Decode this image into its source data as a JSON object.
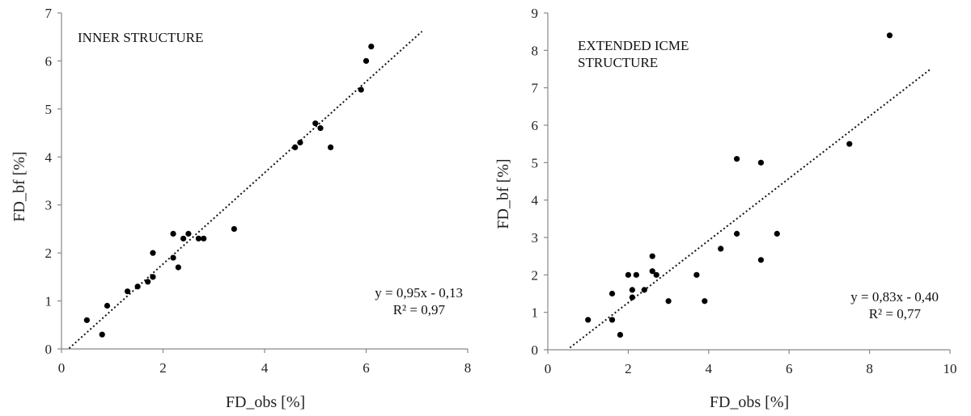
{
  "chart_data": [
    {
      "type": "scatter",
      "label": "INNER STRUCTURE",
      "xlabel": "FD_obs [%]",
      "ylabel": "FD_bf [%]",
      "xlim": [
        0,
        8
      ],
      "ylim": [
        0,
        7
      ],
      "xticks": [
        0,
        2,
        4,
        6,
        8
      ],
      "yticks": [
        0,
        1,
        2,
        3,
        4,
        5,
        6,
        7
      ],
      "grid": false,
      "equation": "y = 0,95x - 0,13",
      "r2": "R² = 0,97",
      "trendline": {
        "slope": 0.95,
        "intercept": -0.13,
        "x_from": 0.15,
        "x_to": 7.1
      },
      "points": [
        [
          0.5,
          0.6
        ],
        [
          0.8,
          0.3
        ],
        [
          0.9,
          0.9
        ],
        [
          1.3,
          1.2
        ],
        [
          1.5,
          1.3
        ],
        [
          1.7,
          1.4
        ],
        [
          1.8,
          1.5
        ],
        [
          1.8,
          2.0
        ],
        [
          2.2,
          1.9
        ],
        [
          2.2,
          2.4
        ],
        [
          2.3,
          1.7
        ],
        [
          2.4,
          2.3
        ],
        [
          2.5,
          2.4
        ],
        [
          2.7,
          2.3
        ],
        [
          2.8,
          2.3
        ],
        [
          3.4,
          2.5
        ],
        [
          4.6,
          4.2
        ],
        [
          4.7,
          4.3
        ],
        [
          5.0,
          4.7
        ],
        [
          5.1,
          4.6
        ],
        [
          5.3,
          4.2
        ],
        [
          5.9,
          5.4
        ],
        [
          6.0,
          6.0
        ],
        [
          6.1,
          6.3
        ]
      ]
    },
    {
      "type": "scatter",
      "label_lines": [
        "EXTENDED ICME",
        "STRUCTURE"
      ],
      "xlabel": "FD_obs [%]",
      "ylabel": "FD_bf [%]",
      "xlim": [
        0,
        10
      ],
      "ylim": [
        0,
        9
      ],
      "xticks": [
        0,
        2,
        4,
        6,
        8,
        10
      ],
      "yticks": [
        0,
        1,
        2,
        3,
        4,
        5,
        6,
        7,
        8,
        9
      ],
      "grid": false,
      "equation": "y = 0,83x - 0,40",
      "r2": "R² = 0,77",
      "trendline": {
        "slope": 0.83,
        "intercept": -0.4,
        "x_from": 0.55,
        "x_to": 9.5
      },
      "points": [
        [
          1.0,
          0.8
        ],
        [
          1.6,
          0.8
        ],
        [
          1.6,
          1.5
        ],
        [
          1.8,
          0.4
        ],
        [
          2.0,
          2.0
        ],
        [
          2.1,
          1.4
        ],
        [
          2.1,
          1.6
        ],
        [
          2.2,
          2.0
        ],
        [
          2.4,
          1.6
        ],
        [
          2.6,
          2.1
        ],
        [
          2.6,
          2.5
        ],
        [
          2.7,
          2.0
        ],
        [
          3.0,
          1.3
        ],
        [
          3.7,
          2.0
        ],
        [
          3.9,
          1.3
        ],
        [
          4.3,
          2.7
        ],
        [
          4.7,
          3.1
        ],
        [
          4.7,
          5.1
        ],
        [
          5.3,
          2.4
        ],
        [
          5.3,
          5.0
        ],
        [
          5.7,
          3.1
        ],
        [
          7.5,
          5.5
        ],
        [
          8.5,
          8.4
        ]
      ]
    }
  ]
}
